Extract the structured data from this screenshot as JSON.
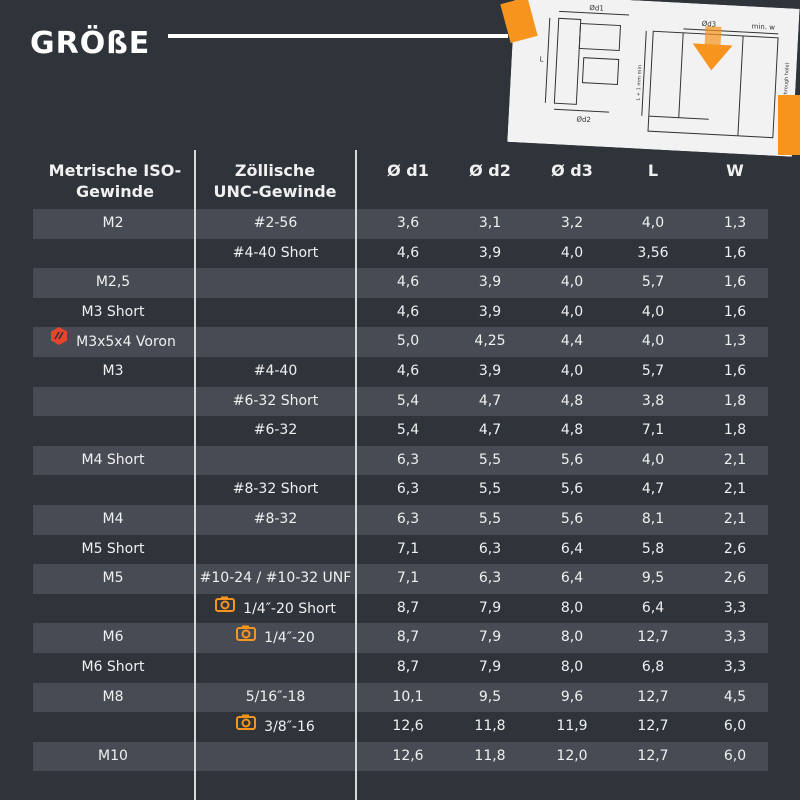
{
  "title": "GRÖßE",
  "drawing": {
    "labels": [
      "Ød1",
      "Ød2",
      "L",
      "Ød3",
      "min. w",
      "L + 1 mm min",
      "Plastic-Part (blind or through hole)"
    ]
  },
  "headers": {
    "metric": "Metrische ISO-Gewinde",
    "unc": "Zöllische UNC-Gewinde",
    "d1": "Ø d1",
    "d2": "Ø d2",
    "d3": "Ø d3",
    "L": "L",
    "W": "W"
  },
  "colors": {
    "accent": "#f7941d",
    "voron": "#e8432e",
    "stripe": "#474b53",
    "background": "#2f333a"
  },
  "rows": [
    {
      "metric": "M2",
      "unc": "#2-56",
      "d1": "3,6",
      "d2": "3,1",
      "d3": "3,2",
      "L": "4,0",
      "W": "1,3"
    },
    {
      "metric": "",
      "unc": "#4-40 Short",
      "d1": "4,6",
      "d2": "3,9",
      "d3": "4,0",
      "L": "3,56",
      "W": "1,6"
    },
    {
      "metric": "M2,5",
      "unc": "",
      "d1": "4,6",
      "d2": "3,9",
      "d3": "4,0",
      "L": "5,7",
      "W": "1,6"
    },
    {
      "metric": "M3 Short",
      "unc": "",
      "d1": "4,6",
      "d2": "3,9",
      "d3": "4,0",
      "L": "4,0",
      "W": "1,6"
    },
    {
      "metric": "M3x5x4 Voron",
      "metric_icon": "voron-logo-icon",
      "unc": "",
      "d1": "5,0",
      "d2": "4,25",
      "d3": "4,4",
      "L": "4,0",
      "W": "1,3"
    },
    {
      "metric": "M3",
      "unc": "#4-40",
      "d1": "4,6",
      "d2": "3,9",
      "d3": "4,0",
      "L": "5,7",
      "W": "1,6"
    },
    {
      "metric": "",
      "unc": "#6-32 Short",
      "d1": "5,4",
      "d2": "4,7",
      "d3": "4,8",
      "L": "3,8",
      "W": "1,8"
    },
    {
      "metric": "",
      "unc": "#6-32",
      "d1": "5,4",
      "d2": "4,7",
      "d3": "4,8",
      "L": "7,1",
      "W": "1,8"
    },
    {
      "metric": "M4 Short",
      "unc": "",
      "d1": "6,3",
      "d2": "5,5",
      "d3": "5,6",
      "L": "4,0",
      "W": "2,1"
    },
    {
      "metric": "",
      "unc": "#8-32 Short",
      "d1": "6,3",
      "d2": "5,5",
      "d3": "5,6",
      "L": "4,7",
      "W": "2,1"
    },
    {
      "metric": "M4",
      "unc": "#8-32",
      "d1": "6,3",
      "d2": "5,5",
      "d3": "5,6",
      "L": "8,1",
      "W": "2,1"
    },
    {
      "metric": "M5 Short",
      "unc": "",
      "d1": "7,1",
      "d2": "6,3",
      "d3": "6,4",
      "L": "5,8",
      "W": "2,6"
    },
    {
      "metric": "M5",
      "unc": "#10-24 / #10-32 UNF",
      "d1": "7,1",
      "d2": "6,3",
      "d3": "6,4",
      "L": "9,5",
      "W": "2,6"
    },
    {
      "metric": "",
      "unc": "1/4″-20 Short",
      "unc_icon": "camera-icon",
      "d1": "8,7",
      "d2": "7,9",
      "d3": "8,0",
      "L": "6,4",
      "W": "3,3"
    },
    {
      "metric": "M6",
      "unc": "1/4″-20",
      "unc_icon": "camera-icon",
      "d1": "8,7",
      "d2": "7,9",
      "d3": "8,0",
      "L": "12,7",
      "W": "3,3"
    },
    {
      "metric": "M6 Short",
      "unc": "",
      "d1": "8,7",
      "d2": "7,9",
      "d3": "8,0",
      "L": "6,8",
      "W": "3,3"
    },
    {
      "metric": "M8",
      "unc": "5/16″-18",
      "d1": "10,1",
      "d2": "9,5",
      "d3": "9,6",
      "L": "12,7",
      "W": "4,5"
    },
    {
      "metric": "",
      "unc": "3/8″-16",
      "unc_icon": "camera-icon",
      "d1": "12,6",
      "d2": "11,8",
      "d3": "11,9",
      "L": "12,7",
      "W": "6,0"
    },
    {
      "metric": "M10",
      "unc": "",
      "d1": "12,6",
      "d2": "11,8",
      "d3": "12,0",
      "L": "12,7",
      "W": "6,0"
    }
  ]
}
